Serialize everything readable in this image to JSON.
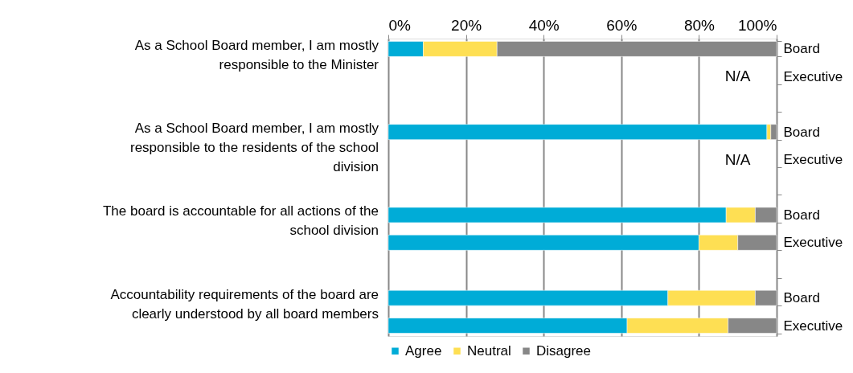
{
  "chart_data": {
    "type": "bar",
    "orientation": "horizontal",
    "stacked": true,
    "categories": [
      "Board",
      "Executive",
      "Board",
      "Executive",
      "Board",
      "Executive",
      "Board",
      "Executive"
    ],
    "series": [
      {
        "name": "Agree",
        "color": "#00acd7",
        "values": [
          9,
          null,
          97.5,
          null,
          87,
          80,
          72,
          61.5
        ],
        "value_labels": [
          null,
          "N/A",
          null,
          "N/A",
          null,
          null,
          null,
          null
        ]
      },
      {
        "name": "Neutral",
        "color": "#fedf53",
        "values": [
          19,
          null,
          1,
          null,
          7.5,
          10,
          22.5,
          26
        ]
      },
      {
        "name": "Disagree",
        "color": "#878787",
        "values": [
          72,
          null,
          1.5,
          null,
          5.5,
          10,
          5.5,
          12.5
        ]
      }
    ],
    "xlim": [
      0,
      100
    ],
    "xticks": [
      {
        "value": 0,
        "label": "0%"
      },
      {
        "value": 20,
        "label": "20%"
      },
      {
        "value": 40,
        "label": "40%"
      },
      {
        "value": 60,
        "label": "60%"
      },
      {
        "value": 80,
        "label": "80%"
      },
      {
        "value": 100,
        "label": "100%"
      }
    ],
    "grid": "x",
    "legend": "bottom",
    "annotations": [
      "As a School Board member, I am mostly responsible to the Minister",
      "As a School Board member, I am mostly responsible to the residents of the school division",
      "The board is accountable for all actions of the school division",
      "Accountability requirements of the board are clearly understood by all board members"
    ]
  }
}
